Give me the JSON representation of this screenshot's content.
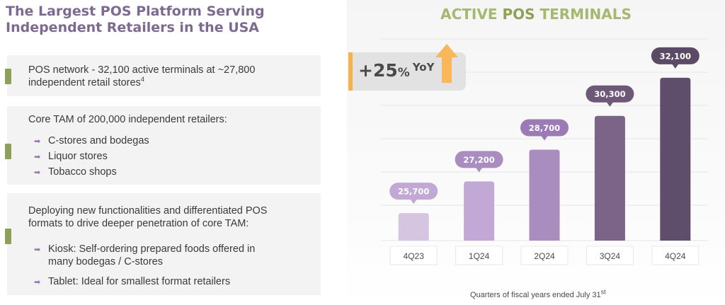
{
  "headline": {
    "line1": "The Largest POS Platform Serving",
    "line2": "Independent Retailers in the USA"
  },
  "cards": [
    {
      "text_line1": "POS network - 32,100 active terminals at ~27,800",
      "text_line2": "independent retail stores",
      "footnote_mark": "4"
    },
    {
      "text_line1": "Core TAM of 200,000 independent retailers:",
      "items": [
        "C-stores and bodegas",
        "Liquor stores",
        "Tobacco shops"
      ]
    },
    {
      "text_line1": "Deploying new functionalities and differentiated POS",
      "text_line2": "formats to drive deeper penetration of core TAM:",
      "items": [
        {
          "line1": "Kiosk: Self-ordering prepared foods offered in",
          "line2": "many bodegas / C-stores"
        },
        {
          "line1": "Tablet: Ideal for smallest format retailers"
        }
      ]
    }
  ],
  "yoy": {
    "value": "+25",
    "unit": "%",
    "label": "YoY"
  },
  "chart_data": {
    "type": "bar",
    "title_part1": "ACTIVE ",
    "title_part2": "POS",
    "title_part3": " TERMINALS",
    "categories": [
      "4Q23",
      "1Q24",
      "2Q24",
      "3Q24",
      "4Q24"
    ],
    "values": [
      25700,
      27200,
      28700,
      30300,
      32100
    ],
    "value_labels": [
      "25,700",
      "27,200",
      "28,700",
      "30,300",
      "32,100"
    ],
    "bar_colors": [
      "#d6c5e0",
      "#c2a8d4",
      "#a98dbf",
      "#7b6488",
      "#5f4d6c"
    ],
    "label_colors": [
      "#c2a8d4",
      "#a98dbf",
      "#9b7ab6",
      "#6d5878",
      "#5a4a66"
    ],
    "ylim": [
      24400,
      32700
    ],
    "xlabel": "Quarters of fiscal years ended July 31",
    "xlabel_sup": "st",
    "grid": true
  },
  "colors": {
    "headline": "#7e6a90",
    "accent_green": "#8ca05a",
    "yoy_stripe": "#f5b14c",
    "up_arrow": "#f7b75a"
  }
}
